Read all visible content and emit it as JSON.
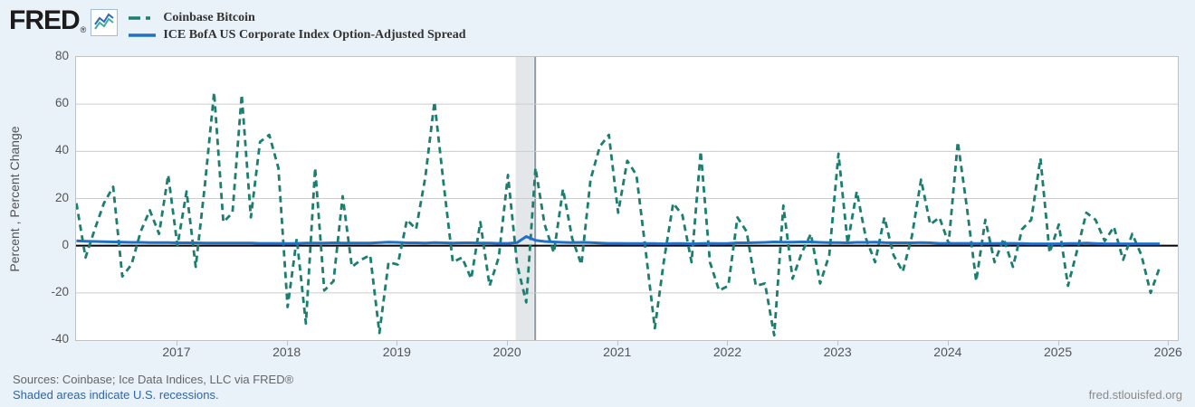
{
  "header": {
    "logo_text": "FRED",
    "logo_registered": "®"
  },
  "legend": {
    "items": [
      {
        "label": "Coinbase Bitcoin",
        "color": "#1b7e6e",
        "dash": true
      },
      {
        "label": "ICE BofA US Corporate Index Option-Adjusted Spread",
        "color": "#1e70c8",
        "dash": false
      }
    ]
  },
  "footer": {
    "sources": "Sources: Coinbase; Ice Data Indices, LLC via FRED®",
    "shaded_note": "Shaded areas indicate U.S. recessions.",
    "site": "fred.stlouisfed.org"
  },
  "chart_data": {
    "type": "line",
    "title": "",
    "xlabel": "",
    "ylabel": "Percent , Percent Change",
    "ylim": [
      -40,
      80
    ],
    "yticks": [
      80,
      60,
      40,
      20,
      0,
      -20,
      -40
    ],
    "xticks": [
      2017,
      2018,
      2019,
      2020,
      2021,
      2022,
      2023,
      2024,
      2025,
      2026
    ],
    "x_range": [
      2016.08,
      2026.08
    ],
    "grid": "horizontal",
    "legend_position": "top-left",
    "zero_line": {
      "value": 0,
      "color": "#000000",
      "width": 2
    },
    "recession_bands": [
      {
        "start": 2020.07,
        "end": 2020.235
      }
    ],
    "colors": {
      "background_outer": "#e9f1f9",
      "background_plot": "#ffffff",
      "gridline": "#cccccc",
      "recession": "#e3e7ea",
      "recession_edge": "#8f99a3"
    },
    "series": [
      {
        "name": "Coinbase Bitcoin",
        "units": "Percent Change (monthly)",
        "color": "#1b7e6e",
        "dash": "7 5",
        "width": 2.8,
        "start_year": 2016,
        "start_month": 2,
        "values": [
          18,
          -5,
          7,
          18,
          25,
          -13,
          -8,
          6,
          15,
          5,
          30,
          0,
          23,
          -9,
          26,
          65,
          10,
          14,
          64,
          12,
          44,
          47,
          33,
          -26,
          3,
          -33,
          33,
          -19,
          -15,
          21,
          -9,
          -6,
          -4,
          -37,
          -7,
          -8,
          11,
          7,
          29,
          61,
          26,
          -7,
          -5,
          -14,
          10,
          -17,
          -5,
          30,
          -8,
          -24,
          33,
          9,
          -3,
          24,
          3,
          -8,
          28,
          42,
          47,
          14,
          36,
          30,
          -2,
          -35,
          -6,
          18,
          13,
          -7,
          40,
          -7,
          -19,
          -17,
          12,
          6,
          -17,
          -16,
          -38,
          17,
          -14,
          -3,
          5,
          -16,
          -4,
          39,
          1,
          23,
          3,
          -7,
          12,
          -4,
          -11,
          4,
          28,
          9,
          12,
          1,
          44,
          16,
          -15,
          11,
          -7,
          3,
          -9,
          7,
          11,
          37,
          -3,
          9,
          -17,
          -2,
          14,
          11,
          2,
          8,
          -6,
          5,
          -4,
          -20,
          -9
        ]
      },
      {
        "name": "ICE BofA US Corporate Index Option-Adjusted Spread",
        "units": "Percent",
        "color": "#1e70c8",
        "dash": null,
        "width": 3,
        "start_year": 2016,
        "start_month": 2,
        "values": [
          2.1,
          1.9,
          1.8,
          1.7,
          1.6,
          1.5,
          1.4,
          1.4,
          1.3,
          1.3,
          1.3,
          1.2,
          1.2,
          1.2,
          1.1,
          1.1,
          1.1,
          1.1,
          1.1,
          1.1,
          1.0,
          1.0,
          1.0,
          0.9,
          1.0,
          1.1,
          1.1,
          1.1,
          1.2,
          1.1,
          1.1,
          1.1,
          1.1,
          1.3,
          1.5,
          1.4,
          1.2,
          1.2,
          1.1,
          1.3,
          1.2,
          1.1,
          1.2,
          1.2,
          1.1,
          1.1,
          1.0,
          1.0,
          1.3,
          3.9,
          2.3,
          1.8,
          1.6,
          1.4,
          1.3,
          1.4,
          1.3,
          1.1,
          1.0,
          1.0,
          0.9,
          0.9,
          0.9,
          0.9,
          0.8,
          0.9,
          0.9,
          0.8,
          0.9,
          1.0,
          0.9,
          1.0,
          1.2,
          1.2,
          1.3,
          1.4,
          1.6,
          1.5,
          1.5,
          1.6,
          1.6,
          1.4,
          1.3,
          1.3,
          1.2,
          1.4,
          1.4,
          1.5,
          1.3,
          1.2,
          1.2,
          1.2,
          1.3,
          1.2,
          1.0,
          1.0,
          1.0,
          1.0,
          0.9,
          0.9,
          0.9,
          1.0,
          1.0,
          0.9,
          0.8,
          0.8,
          0.8,
          0.8,
          0.9,
          0.9,
          1.1,
          0.9,
          0.8,
          0.8,
          0.8,
          0.8,
          0.8,
          0.8,
          0.8
        ]
      }
    ]
  }
}
